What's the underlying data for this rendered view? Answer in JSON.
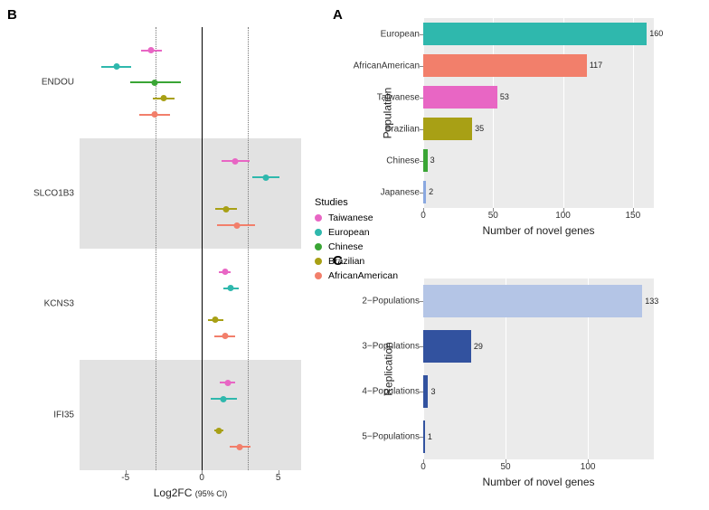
{
  "colors": {
    "Taiwanese": "#e866c4",
    "European": "#2fb8ad",
    "Chinese": "#3aa535",
    "Brazilian": "#a8a015",
    "AfricanAmerican": "#f27f6b",
    "Japanese": "#8aa8e0",
    "replication_light": "#b4c5e6",
    "replication_dark": "#32529f",
    "grid_bg": "#ebebeb",
    "zero_line": "#000000",
    "dotted_line": "#777777"
  },
  "panelA": {
    "label": "A",
    "y_title": "Population",
    "x_title": "Number of novel genes",
    "xmax": 165,
    "xticks": [
      0,
      50,
      100,
      150
    ],
    "rows": [
      {
        "label": "European",
        "value": 160,
        "color_key": "European"
      },
      {
        "label": "AfricanAmerican",
        "value": 117,
        "color_key": "AfricanAmerican"
      },
      {
        "label": "Taiwanese",
        "value": 53,
        "color_key": "Taiwanese"
      },
      {
        "label": "Brazilian",
        "value": 35,
        "color_key": "Brazilian"
      },
      {
        "label": "Chinese",
        "value": 3,
        "color_key": "Chinese"
      },
      {
        "label": "Japanese",
        "value": 2,
        "color_key": "Japanese"
      }
    ]
  },
  "panelC": {
    "label": "C",
    "y_title": "Replication",
    "x_title": "Number of novel genes",
    "xmax": 140,
    "xticks": [
      0,
      50,
      100
    ],
    "rows": [
      {
        "label": "2−Populations",
        "value": 133,
        "color_key": "replication_light"
      },
      {
        "label": "3−Populations",
        "value": 29,
        "color_key": "replication_dark"
      },
      {
        "label": "4−Populations",
        "value": 3,
        "color_key": "replication_dark"
      },
      {
        "label": "5−Populations",
        "value": 1,
        "color_key": "replication_dark"
      }
    ]
  },
  "panelB": {
    "label": "B",
    "x_title_main": "Log2FC",
    "x_title_sub": "(95% CI)",
    "xmin": -8,
    "xmax": 6.5,
    "xticks": [
      -5,
      0,
      5
    ],
    "dotted_at": [
      -3,
      3
    ],
    "legend_title": "Studies",
    "legend_order": [
      "Taiwanese",
      "European",
      "Chinese",
      "Brazilian",
      "AfricanAmerican"
    ],
    "genes": [
      {
        "name": "ENDOU",
        "band": false,
        "points": [
          {
            "study": "Taiwanese",
            "x": -3.3,
            "lo": -4.0,
            "hi": -2.6
          },
          {
            "study": "European",
            "x": -5.6,
            "lo": -6.6,
            "hi": -4.6
          },
          {
            "study": "Chinese",
            "x": -3.1,
            "lo": -4.7,
            "hi": -1.4
          },
          {
            "study": "Brazilian",
            "x": -2.5,
            "lo": -3.2,
            "hi": -1.8
          },
          {
            "study": "AfricanAmerican",
            "x": -3.1,
            "lo": -4.1,
            "hi": -2.1
          }
        ]
      },
      {
        "name": "SLCO1B3",
        "band": true,
        "points": [
          {
            "study": "Taiwanese",
            "x": 2.2,
            "lo": 1.3,
            "hi": 3.1
          },
          {
            "study": "European",
            "x": 4.2,
            "lo": 3.3,
            "hi": 5.1
          },
          {
            "study": "Chinese",
            "x": null,
            "lo": null,
            "hi": null
          },
          {
            "study": "Brazilian",
            "x": 1.6,
            "lo": 0.9,
            "hi": 2.3
          },
          {
            "study": "AfricanAmerican",
            "x": 2.3,
            "lo": 1.0,
            "hi": 3.5
          }
        ]
      },
      {
        "name": "KCNS3",
        "band": false,
        "points": [
          {
            "study": "Taiwanese",
            "x": 1.5,
            "lo": 1.1,
            "hi": 1.9
          },
          {
            "study": "European",
            "x": 1.9,
            "lo": 1.4,
            "hi": 2.4
          },
          {
            "study": "Chinese",
            "x": null,
            "lo": null,
            "hi": null
          },
          {
            "study": "Brazilian",
            "x": 0.9,
            "lo": 0.4,
            "hi": 1.4
          },
          {
            "study": "AfricanAmerican",
            "x": 1.5,
            "lo": 0.8,
            "hi": 2.2
          }
        ]
      },
      {
        "name": "IFI35",
        "band": true,
        "points": [
          {
            "study": "Taiwanese",
            "x": 1.7,
            "lo": 1.2,
            "hi": 2.2
          },
          {
            "study": "European",
            "x": 1.4,
            "lo": 0.6,
            "hi": 2.3
          },
          {
            "study": "Chinese",
            "x": null,
            "lo": null,
            "hi": null
          },
          {
            "study": "Brazilian",
            "x": 1.1,
            "lo": 0.8,
            "hi": 1.4
          },
          {
            "study": "AfricanAmerican",
            "x": 2.5,
            "lo": 1.8,
            "hi": 3.2
          }
        ]
      }
    ]
  }
}
